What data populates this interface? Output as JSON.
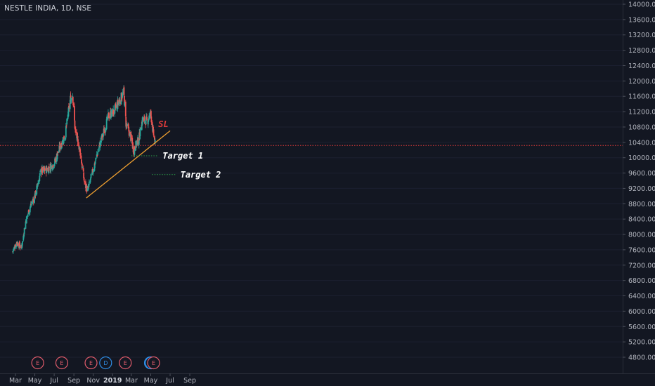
{
  "header": {
    "title": "NESTLE INDIA, 1D, NSE"
  },
  "colors": {
    "background": "#131722",
    "up": "#26a69a",
    "down": "#ef5350",
    "trendline": "#f0a030",
    "price_line": "#e03b3b",
    "target_line": "#2e9e4a",
    "earnings": "#e35c6c",
    "dividend": "#2f8fe8",
    "axis_text": "#b2b5be"
  },
  "chart_data": {
    "type": "candlestick",
    "title": "NESTLE INDIA, 1D, NSE",
    "ylim": [
      4600,
      14200
    ],
    "y_ticks": [
      "14000.00",
      "13600.00",
      "13200.00",
      "12800.00",
      "12400.00",
      "12000.00",
      "11600.00",
      "11200.00",
      "10800.00",
      "10400.00",
      "10000.00",
      "9600.00",
      "9200.00",
      "8800.00",
      "8400.00",
      "8000.00",
      "7600.00",
      "7200.00",
      "6800.00",
      "6400.00",
      "6000.00",
      "5600.00",
      "5200.00",
      "4800.00"
    ],
    "x_ticks": [
      {
        "label": "Mar",
        "date": "2018-03-01"
      },
      {
        "label": "May",
        "date": "2018-05-01"
      },
      {
        "label": "Jul",
        "date": "2018-07-01"
      },
      {
        "label": "Sep",
        "date": "2018-09-01"
      },
      {
        "label": "Nov",
        "date": "2018-11-01"
      },
      {
        "label": "2019",
        "date": "2019-01-01",
        "bold": true
      },
      {
        "label": "Mar",
        "date": "2019-03-01"
      },
      {
        "label": "May",
        "date": "2019-05-01"
      },
      {
        "label": "Jul",
        "date": "2019-07-01"
      },
      {
        "label": "Sep",
        "date": "2019-09-01"
      }
    ],
    "price_path": [
      {
        "date": "2018-02-20",
        "close": 7550
      },
      {
        "date": "2018-03-05",
        "close": 7800
      },
      {
        "date": "2018-03-20",
        "close": 7650
      },
      {
        "date": "2018-04-01",
        "close": 8300
      },
      {
        "date": "2018-04-15",
        "close": 8700
      },
      {
        "date": "2018-05-01",
        "close": 9000
      },
      {
        "date": "2018-05-20",
        "close": 9650
      },
      {
        "date": "2018-06-10",
        "close": 9700
      },
      {
        "date": "2018-07-01",
        "close": 9850
      },
      {
        "date": "2018-07-20",
        "close": 10300
      },
      {
        "date": "2018-08-05",
        "close": 10600
      },
      {
        "date": "2018-08-20",
        "close": 11500
      },
      {
        "date": "2018-08-28",
        "close": 11650
      },
      {
        "date": "2018-09-05",
        "close": 10700
      },
      {
        "date": "2018-09-20",
        "close": 10200
      },
      {
        "date": "2018-10-05",
        "close": 9300
      },
      {
        "date": "2018-10-15",
        "close": 9150
      },
      {
        "date": "2018-11-01",
        "close": 9700
      },
      {
        "date": "2018-11-20",
        "close": 10300
      },
      {
        "date": "2018-12-05",
        "close": 10700
      },
      {
        "date": "2018-12-20",
        "close": 11100
      },
      {
        "date": "2019-01-05",
        "close": 11200
      },
      {
        "date": "2019-01-20",
        "close": 11450
      },
      {
        "date": "2019-02-05",
        "close": 11700
      },
      {
        "date": "2019-02-12",
        "close": 10900
      },
      {
        "date": "2019-02-25",
        "close": 10600
      },
      {
        "date": "2019-03-08",
        "close": 10200
      },
      {
        "date": "2019-03-25",
        "close": 10500
      },
      {
        "date": "2019-04-05",
        "close": 11000
      },
      {
        "date": "2019-04-20",
        "close": 10950
      },
      {
        "date": "2019-05-01",
        "close": 11150
      },
      {
        "date": "2019-05-08",
        "close": 10700
      },
      {
        "date": "2019-05-15",
        "close": 10350
      }
    ],
    "current_price": 10320,
    "trendline": {
      "from": {
        "date": "2018-10-10",
        "price": 8950
      },
      "to": {
        "date": "2019-07-01",
        "price": 10700
      }
    },
    "targets": [
      {
        "label": "Target 1",
        "price": 10050,
        "from": "2019-03-01",
        "to": "2019-05-25"
      },
      {
        "label": "Target 2",
        "price": 9560,
        "from": "2019-05-05",
        "to": "2019-07-20"
      }
    ],
    "stop_loss": {
      "label": "SL",
      "date": "2019-05-25",
      "price": 10870
    },
    "events": [
      {
        "type": "E",
        "date": "2018-05-10"
      },
      {
        "type": "E",
        "date": "2018-07-25"
      },
      {
        "type": "E",
        "date": "2018-10-25"
      },
      {
        "type": "D",
        "date": "2018-12-10"
      },
      {
        "type": "E",
        "date": "2019-02-10"
      },
      {
        "type": "D",
        "date": "2019-04-30"
      },
      {
        "type": "D",
        "date": "2019-05-03"
      },
      {
        "type": "E",
        "date": "2019-05-10"
      }
    ]
  }
}
